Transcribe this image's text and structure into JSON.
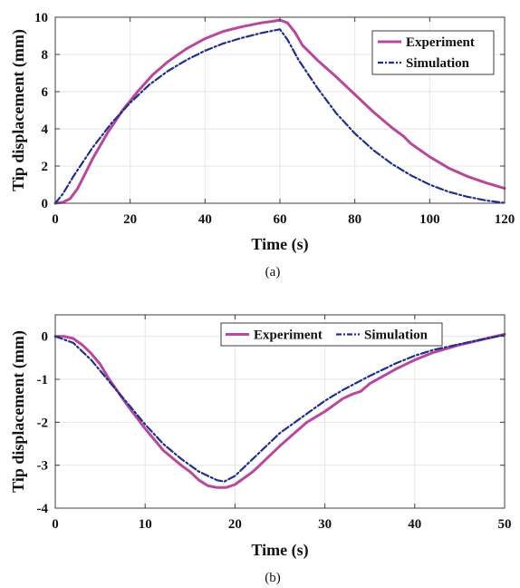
{
  "chart_data": [
    {
      "type": "line",
      "caption": "(a)",
      "xlabel": "Time (s)",
      "ylabel": "Tip displacement (mm)",
      "xlim": [
        0,
        120
      ],
      "ylim": [
        0,
        10
      ],
      "xticks": [
        0,
        20,
        40,
        60,
        80,
        100,
        120
      ],
      "yticks": [
        0,
        2,
        4,
        6,
        8,
        10
      ],
      "grid": true,
      "legend_position": "top-right",
      "series": [
        {
          "name": "Experiment",
          "color": "#b8489a",
          "style": "solid",
          "x": [
            0,
            2,
            4,
            6,
            8,
            10,
            14,
            18,
            22,
            26,
            30,
            35,
            40,
            45,
            50,
            55,
            58,
            60,
            62,
            64,
            66,
            70,
            75,
            80,
            85,
            90,
            92,
            93,
            95,
            100,
            105,
            110,
            115,
            120
          ],
          "y": [
            0,
            0.05,
            0.25,
            0.8,
            1.6,
            2.4,
            3.8,
            5.0,
            6.0,
            6.9,
            7.6,
            8.3,
            8.85,
            9.25,
            9.5,
            9.7,
            9.78,
            9.85,
            9.7,
            9.2,
            8.5,
            7.7,
            6.8,
            5.85,
            4.9,
            4.05,
            3.75,
            3.6,
            3.2,
            2.5,
            1.9,
            1.45,
            1.1,
            0.8
          ]
        },
        {
          "name": "Simulation",
          "color": "#1f2e8f",
          "style": "dashdot",
          "x": [
            0,
            2,
            5,
            10,
            15,
            20,
            25,
            30,
            35,
            40,
            45,
            50,
            55,
            60,
            62,
            65,
            70,
            75,
            80,
            85,
            90,
            95,
            100,
            105,
            110,
            115,
            120
          ],
          "y": [
            0,
            0.5,
            1.5,
            3.0,
            4.3,
            5.4,
            6.35,
            7.1,
            7.7,
            8.2,
            8.6,
            8.9,
            9.15,
            9.35,
            8.8,
            7.7,
            6.2,
            4.85,
            3.75,
            2.85,
            2.1,
            1.5,
            1.0,
            0.62,
            0.35,
            0.15,
            0.02
          ]
        }
      ]
    },
    {
      "type": "line",
      "caption": "(b)",
      "xlabel": "Time (s)",
      "ylabel": "Tip displacement (mm)",
      "xlim": [
        0,
        50
      ],
      "ylim": [
        -4,
        0.5
      ],
      "xticks": [
        0,
        10,
        20,
        30,
        40,
        50
      ],
      "yticks": [
        -4,
        -3,
        -2,
        -1,
        0
      ],
      "grid": true,
      "legend_position": "top-right",
      "series": [
        {
          "name": "Experiment",
          "color": "#b8489a",
          "style": "solid",
          "x": [
            0,
            1,
            2,
            3,
            4,
            5,
            6,
            8,
            10,
            12,
            14,
            15,
            16,
            17,
            18,
            19,
            20,
            22,
            25,
            28,
            30,
            32,
            33,
            34,
            35,
            38,
            40,
            42,
            45,
            48,
            50
          ],
          "y": [
            0,
            0,
            -0.05,
            -0.2,
            -0.4,
            -0.65,
            -1.0,
            -1.6,
            -2.15,
            -2.65,
            -3.0,
            -3.15,
            -3.35,
            -3.48,
            -3.52,
            -3.52,
            -3.45,
            -3.15,
            -2.55,
            -2.0,
            -1.75,
            -1.45,
            -1.35,
            -1.28,
            -1.1,
            -0.75,
            -0.55,
            -0.38,
            -0.2,
            -0.05,
            0.05
          ]
        },
        {
          "name": "Simulation",
          "color": "#1f2e8f",
          "style": "dashdot",
          "x": [
            0,
            2,
            4,
            6,
            8,
            10,
            12,
            14,
            16,
            18,
            18.8,
            20,
            22,
            25,
            28,
            30,
            32,
            35,
            38,
            40,
            42,
            45,
            48,
            50
          ],
          "y": [
            0,
            -0.15,
            -0.55,
            -1.05,
            -1.55,
            -2.05,
            -2.5,
            -2.85,
            -3.15,
            -3.35,
            -3.38,
            -3.25,
            -2.85,
            -2.25,
            -1.8,
            -1.5,
            -1.25,
            -0.92,
            -0.62,
            -0.45,
            -0.32,
            -0.18,
            -0.05,
            0.03
          ]
        }
      ]
    }
  ]
}
